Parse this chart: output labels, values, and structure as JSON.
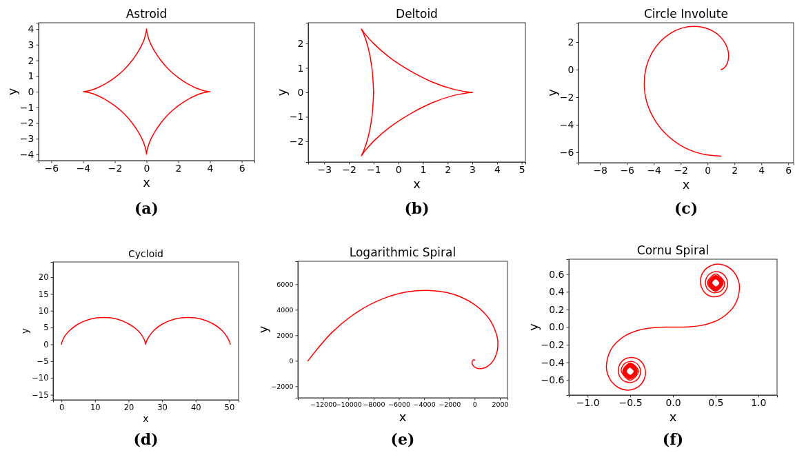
{
  "chart_data": [
    {
      "type": "line",
      "title": "Astroid",
      "xlabel": "x",
      "ylabel": "y",
      "xlim": [
        -6.8,
        6.8
      ],
      "ylim": [
        -4.4,
        4.4
      ],
      "xticks": [
        -6,
        -4,
        -2,
        0,
        2,
        4,
        6
      ],
      "yticks": [
        -4,
        -3,
        -2,
        -1,
        0,
        1,
        2,
        3,
        4
      ],
      "annotations": [
        "(a)"
      ],
      "series": [
        {
          "color": "#ff0000",
          "x": [
            4,
            3.9,
            3.6,
            3.15,
            2.6,
            2,
            1.41,
            0.9,
            0.5,
            0.22,
            0.07,
            0.01,
            0,
            -0.01,
            -0.07,
            -0.22,
            -0.5,
            -0.9,
            -1.41,
            -2,
            -2.6,
            -3.15,
            -3.6,
            -3.9,
            -4,
            -3.9,
            -3.6,
            -3.15,
            -2.6,
            -2,
            -1.41,
            -0.9,
            -0.5,
            -0.22,
            -0.07,
            -0.01,
            0,
            0.01,
            0.07,
            0.22,
            0.5,
            0.9,
            1.41,
            2,
            2.6,
            3.15,
            3.6,
            3.9
          ],
          "values": [
            0,
            0.01,
            0.07,
            0.22,
            0.5,
            0.9,
            1.41,
            2,
            2.6,
            3.15,
            3.6,
            3.9,
            4,
            3.9,
            3.6,
            3.15,
            2.6,
            2,
            1.41,
            0.9,
            0.5,
            0.22,
            0.07,
            0.01,
            0,
            -0.01,
            -0.07,
            -0.22,
            -0.5,
            -0.9,
            -1.41,
            -2,
            -2.6,
            -3.15,
            -3.6,
            -3.9,
            -4,
            -3.9,
            -3.6,
            -3.15,
            -2.6,
            -2,
            -1.41,
            -0.9,
            -0.5,
            -0.22,
            -0.07,
            -0.01
          ]
        }
      ]
    },
    {
      "type": "line",
      "title": "Deltoid",
      "xlabel": "x",
      "ylabel": "y",
      "xlim": [
        -3.65,
        5.15
      ],
      "ylim": [
        -2.85,
        2.85
      ],
      "xticks": [
        -3,
        -2,
        -1,
        0,
        1,
        2,
        3,
        4,
        5
      ],
      "yticks": [
        -2,
        -1,
        0,
        1,
        2
      ],
      "annotations": [
        "(b)"
      ],
      "series": [
        {
          "color": "#ff0000",
          "x": [
            3,
            2.8,
            2.23,
            1.41,
            0.5,
            -0.35,
            -1,
            -1.38,
            -1.5,
            -1.41,
            -1.23,
            -1.07,
            -1
          ],
          "values": [
            0,
            0.02,
            0.13,
            0.41,
            0.87,
            1.43,
            2,
            2.43,
            2.6,
            2.41,
            1.87,
            1.02,
            0
          ]
        },
        {
          "color": "#ff0000",
          "x": [
            -1,
            -1.07,
            -1.23,
            -1.41,
            -1.5,
            -1.38,
            -1,
            -0.35,
            0.5,
            1.41,
            2.23,
            2.8,
            3
          ],
          "values": [
            0,
            -1.02,
            -1.87,
            -2.41,
            -2.6,
            -2.43,
            -2,
            -1.43,
            -0.87,
            -0.41,
            -0.13,
            -0.02,
            0
          ]
        }
      ]
    },
    {
      "type": "line",
      "title": "Circle Involute",
      "xlabel": "x",
      "ylabel": "y",
      "xlim": [
        -9.6,
        6.4
      ],
      "ylim": [
        -6.75,
        3.4
      ],
      "xticks": [
        -8,
        -6,
        -4,
        -2,
        0,
        2,
        4,
        6
      ],
      "yticks": [
        -6,
        -4,
        -2,
        0,
        2
      ],
      "annotations": [
        "(c)"
      ],
      "series": [
        {
          "color": "#ff0000",
          "x": [
            1,
            1.03,
            1.13,
            1.26,
            1.41,
            1.52,
            1.57,
            1.51,
            1.31,
            0.96,
            0.44,
            -0.22,
            -1,
            -1.85,
            -2.7,
            -3.48,
            -4.13,
            -4.56,
            -4.71,
            -4.55,
            -4.03,
            -3.18,
            -2.01,
            -0.59,
            1
          ],
          "values": [
            0,
            0.01,
            0.05,
            0.15,
            0.34,
            0.63,
            1,
            1.44,
            1.91,
            2.37,
            2.77,
            3.04,
            3.14,
            3.03,
            2.67,
            2.07,
            1.23,
            0.19,
            -1,
            -2.25,
            -3.48,
            -4.59,
            -5.49,
            -6.07,
            -6.28
          ]
        }
      ]
    },
    {
      "type": "line",
      "title": "Cycloid",
      "xlabel": "x",
      "ylabel": "y",
      "xlim": [
        -2.5,
        52.8
      ],
      "ylim": [
        -16.5,
        24.5
      ],
      "xticks": [
        0,
        10,
        20,
        30,
        40,
        50
      ],
      "yticks": [
        -15,
        -10,
        -5,
        0,
        5,
        10,
        15,
        20
      ],
      "annotations": [
        "(d)"
      ],
      "series": [
        {
          "color": "#ff0000",
          "x": [
            0,
            0,
            0.1,
            0.7,
            2.3,
            4.9,
            8.5,
            12.6,
            16.7,
            20.2,
            22.9,
            24.4,
            25,
            25.1,
            25.1,
            25.1,
            25.2,
            25.9,
            27.4,
            30,
            33.6,
            37.7,
            41.8,
            45.4,
            48,
            49.5,
            50.2,
            50.3,
            50.3
          ],
          "values": [
            0,
            0.1,
            0.5,
            2,
            4,
            6,
            7.5,
            8,
            7.5,
            6,
            4,
            2,
            0.5,
            0.1,
            0,
            0.1,
            0.5,
            2,
            4,
            6,
            7.5,
            8,
            7.5,
            6,
            4,
            2,
            0.5,
            0.1,
            0
          ]
        }
      ]
    },
    {
      "type": "line",
      "title": "Logarithmic Spiral",
      "xlabel": "x",
      "ylabel": "y",
      "xlim": [
        -14000,
        2600
      ],
      "ylim": [
        -2900,
        7800
      ],
      "xticks": [
        -12000,
        -10000,
        -8000,
        -6000,
        -4000,
        -2000,
        0,
        2000
      ],
      "yticks": [
        -2000,
        0,
        2000,
        4000,
        6000
      ],
      "annotations": [
        "(e)"
      ],
      "series": [
        {
          "color": "#ff0000",
          "x": [
            0,
            -30,
            -70,
            -120,
            -160,
            -200,
            -200,
            -140,
            0,
            250,
            410,
            600,
            1030,
            1470,
            1780,
            1840,
            1800,
            1280,
            750,
            0,
            -980,
            -2220,
            -3690,
            -5390,
            -7270,
            -9270,
            -11280,
            -13200
          ],
          "values": [
            50,
            70,
            70,
            50,
            0,
            -80,
            -200,
            -340,
            -490,
            -600,
            -610,
            -600,
            -430,
            0,
            740,
            1230,
            1800,
            3090,
            3760,
            4400,
            4950,
            5350,
            5520,
            5390,
            4860,
            3840,
            2240,
            0
          ]
        }
      ]
    },
    {
      "type": "line",
      "title": "Cornu Spiral",
      "xlabel": "x",
      "ylabel": "y",
      "xlim": [
        -1.22,
        1.22
      ],
      "ylim": [
        -0.77,
        0.77
      ],
      "xticks": [
        {
          "value": -1,
          "label": "−1.0"
        },
        {
          "value": -0.5,
          "label": "−0.5"
        },
        {
          "value": 0,
          "label": "0.0"
        },
        {
          "value": 0.5,
          "label": "0.5"
        },
        {
          "value": 1,
          "label": "1.0"
        }
      ],
      "yticks": [
        {
          "value": -0.6,
          "label": "−0.6"
        },
        {
          "value": -0.4,
          "label": "−0.4"
        },
        {
          "value": -0.2,
          "label": "−0.2"
        },
        {
          "value": 0,
          "label": "0.0"
        },
        {
          "value": 0.2,
          "label": "0.2"
        },
        {
          "value": 0.4,
          "label": "0.4"
        },
        {
          "value": 0.6,
          "label": "0.6"
        }
      ],
      "annotations": [
        "(f)"
      ],
      "series": [
        {
          "color": "#ff0000",
          "x": [
            -0.5,
            -0.454,
            -0.5,
            -0.548,
            -0.5,
            -0.452,
            -0.5,
            -0.55,
            -0.5,
            -0.449,
            -0.5,
            -0.552,
            -0.5,
            -0.446,
            -0.5,
            -0.555,
            -0.5,
            -0.443,
            -0.5,
            -0.559,
            -0.5,
            -0.439,
            -0.5,
            -0.564,
            -0.5,
            -0.434,
            -0.5,
            -0.57,
            -0.5,
            -0.427,
            -0.5,
            -0.577,
            -0.5,
            -0.418,
            -0.5,
            -0.588,
            -0.5,
            -0.404,
            -0.5,
            -0.606,
            -0.562,
            -0.467,
            -0.392,
            -0.389,
            -0.457,
            -0.555,
            -0.627,
            -0.636,
            -0.582,
            -0.488,
            -0.394,
            -0.334,
            -0.324,
            -0.365,
            -0.445,
            -0.543,
            -0.639,
            -0.715,
            -0.764,
            -0.78,
            -0.723,
            -0.581,
            -0.398,
            -0.2,
            0,
            0.2,
            0.398,
            0.581,
            0.723,
            0.78,
            0.764,
            0.715,
            0.639,
            0.543,
            0.445,
            0.365,
            0.324,
            0.334,
            0.394,
            0.488,
            0.582,
            0.636,
            0.627,
            0.555,
            0.457,
            0.389,
            0.392,
            0.467,
            0.562,
            0.606,
            0.5,
            0.404,
            0.5,
            0.588,
            0.5,
            0.418,
            0.5,
            0.577,
            0.5,
            0.427,
            0.5,
            0.57,
            0.5,
            0.434,
            0.5,
            0.564,
            0.5,
            0.439,
            0.5,
            0.559,
            0.5,
            0.443,
            0.5,
            0.555,
            0.5,
            0.446,
            0.5,
            0.552,
            0.5,
            0.449,
            0.5,
            0.55,
            0.5,
            0.452,
            0.5,
            0.548,
            0.5,
            0.454,
            0.5
          ],
          "values": [
            -0.454,
            -0.5,
            -0.547,
            -0.5,
            -0.452,
            -0.5,
            -0.549,
            -0.5,
            -0.45,
            -0.5,
            -0.552,
            -0.5,
            -0.447,
            -0.5,
            -0.555,
            -0.5,
            -0.444,
            -0.5,
            -0.558,
            -0.5,
            -0.44,
            -0.5,
            -0.562,
            -0.5,
            -0.435,
            -0.5,
            -0.568,
            -0.5,
            -0.429,
            -0.5,
            -0.575,
            -0.5,
            -0.42,
            -0.5,
            -0.585,
            -0.5,
            -0.408,
            -0.5,
            -0.601,
            -0.496,
            -0.41,
            -0.392,
            -0.453,
            -0.55,
            -0.619,
            -0.62,
            -0.553,
            -0.456,
            -0.374,
            -0.343,
            -0.373,
            -0.451,
            -0.549,
            -0.639,
            -0.698,
            -0.714,
            -0.686,
            -0.623,
            -0.537,
            -0.438,
            -0.249,
            -0.111,
            -0.033,
            -0.004,
            0,
            0.004,
            0.033,
            0.111,
            0.249,
            0.438,
            0.537,
            0.623,
            0.686,
            0.714,
            0.698,
            0.639,
            0.549,
            0.451,
            0.373,
            0.343,
            0.374,
            0.456,
            0.553,
            0.62,
            0.619,
            0.55,
            0.453,
            0.392,
            0.41,
            0.496,
            0.601,
            0.5,
            0.408,
            0.5,
            0.585,
            0.5,
            0.42,
            0.5,
            0.575,
            0.5,
            0.429,
            0.5,
            0.568,
            0.5,
            0.435,
            0.5,
            0.562,
            0.5,
            0.44,
            0.5,
            0.558,
            0.5,
            0.444,
            0.5,
            0.555,
            0.5,
            0.447,
            0.5,
            0.552,
            0.5,
            0.45,
            0.5,
            0.549,
            0.5,
            0.452,
            0.5,
            0.547,
            0.5,
            0.454
          ]
        }
      ]
    }
  ]
}
